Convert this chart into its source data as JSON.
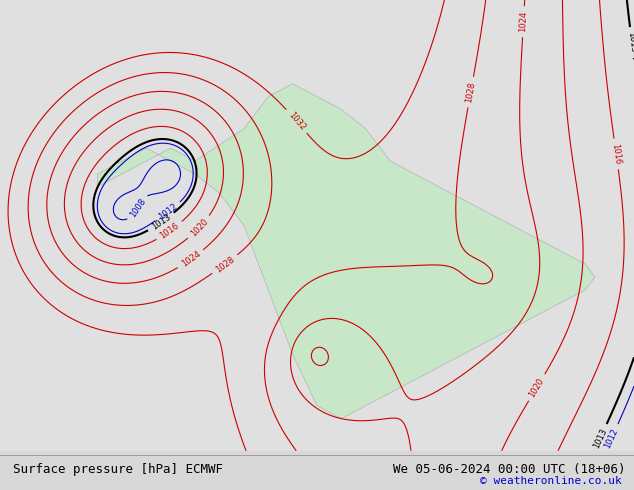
{
  "title_left": "Surface pressure [hPa] ECMWF",
  "title_right": "We 05-06-2024 00:00 UTC (18+06)",
  "copyright": "© weatheronline.co.uk",
  "bg_color": "#d8d8d8",
  "land_color": "#c8e6c8",
  "ocean_color": "#e8e8e8",
  "contour_blue_color": "#0000cc",
  "contour_red_color": "#cc0000",
  "contour_black_color": "#000000",
  "contour_1013_color": "#000000",
  "bottom_bar_color": "#ffffff",
  "bottom_text_color": "#000000",
  "copyright_color": "#0000cc",
  "font_size_bottom": 9,
  "font_size_labels": 7
}
